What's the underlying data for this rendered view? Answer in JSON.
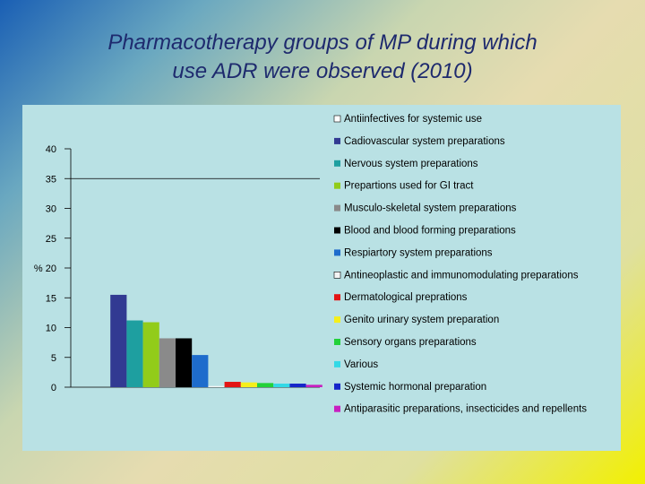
{
  "slide": {
    "title_line1": "Pharmacotherapy groups of MP during which",
    "title_line2": "use ADR were observed (2010)"
  },
  "chart_data": {
    "type": "bar",
    "ylabel": "%",
    "ylim": [
      0,
      40
    ],
    "yticks": [
      0,
      5,
      10,
      15,
      20,
      25,
      30,
      35,
      40
    ],
    "gridlines": [
      35
    ],
    "legend_position": "right",
    "series": [
      {
        "name": "Antiinfectives for systemic use",
        "value": 0,
        "color": "#ffffff"
      },
      {
        "name": "Cadiovascular system preparations",
        "value": 15.5,
        "color": "#323a92"
      },
      {
        "name": "Nervous system preparations",
        "value": 11.2,
        "color": "#1e9fa0"
      },
      {
        "name": "Prepartions used for GI tract",
        "value": 10.9,
        "color": "#92cc1a"
      },
      {
        "name": "Musculo-skeletal system preparations",
        "value": 8.2,
        "color": "#8a8a8a"
      },
      {
        "name": "Blood and blood forming preparations",
        "value": 8.2,
        "color": "#000000"
      },
      {
        "name": "Respiartory system preparations",
        "value": 5.4,
        "color": "#1e6ccc"
      },
      {
        "name": "Antineoplastic and immunomodulating preparations",
        "value": 0.2,
        "color": "#f4f4f4"
      },
      {
        "name": "Dermatological preprations",
        "value": 0.9,
        "color": "#e31414"
      },
      {
        "name": "Genito urinary system preparation",
        "value": 0.8,
        "color": "#f5ef1b"
      },
      {
        "name": "Sensory organs preparations",
        "value": 0.7,
        "color": "#22d13a"
      },
      {
        "name": "Various",
        "value": 0.6,
        "color": "#33d9e6"
      },
      {
        "name": "Systemic hormonal preparation",
        "value": 0.6,
        "color": "#1626c9"
      },
      {
        "name": "Antiparasitic preparations, insecticides and repellents",
        "value": 0.4,
        "color": "#c81fc0"
      }
    ]
  }
}
